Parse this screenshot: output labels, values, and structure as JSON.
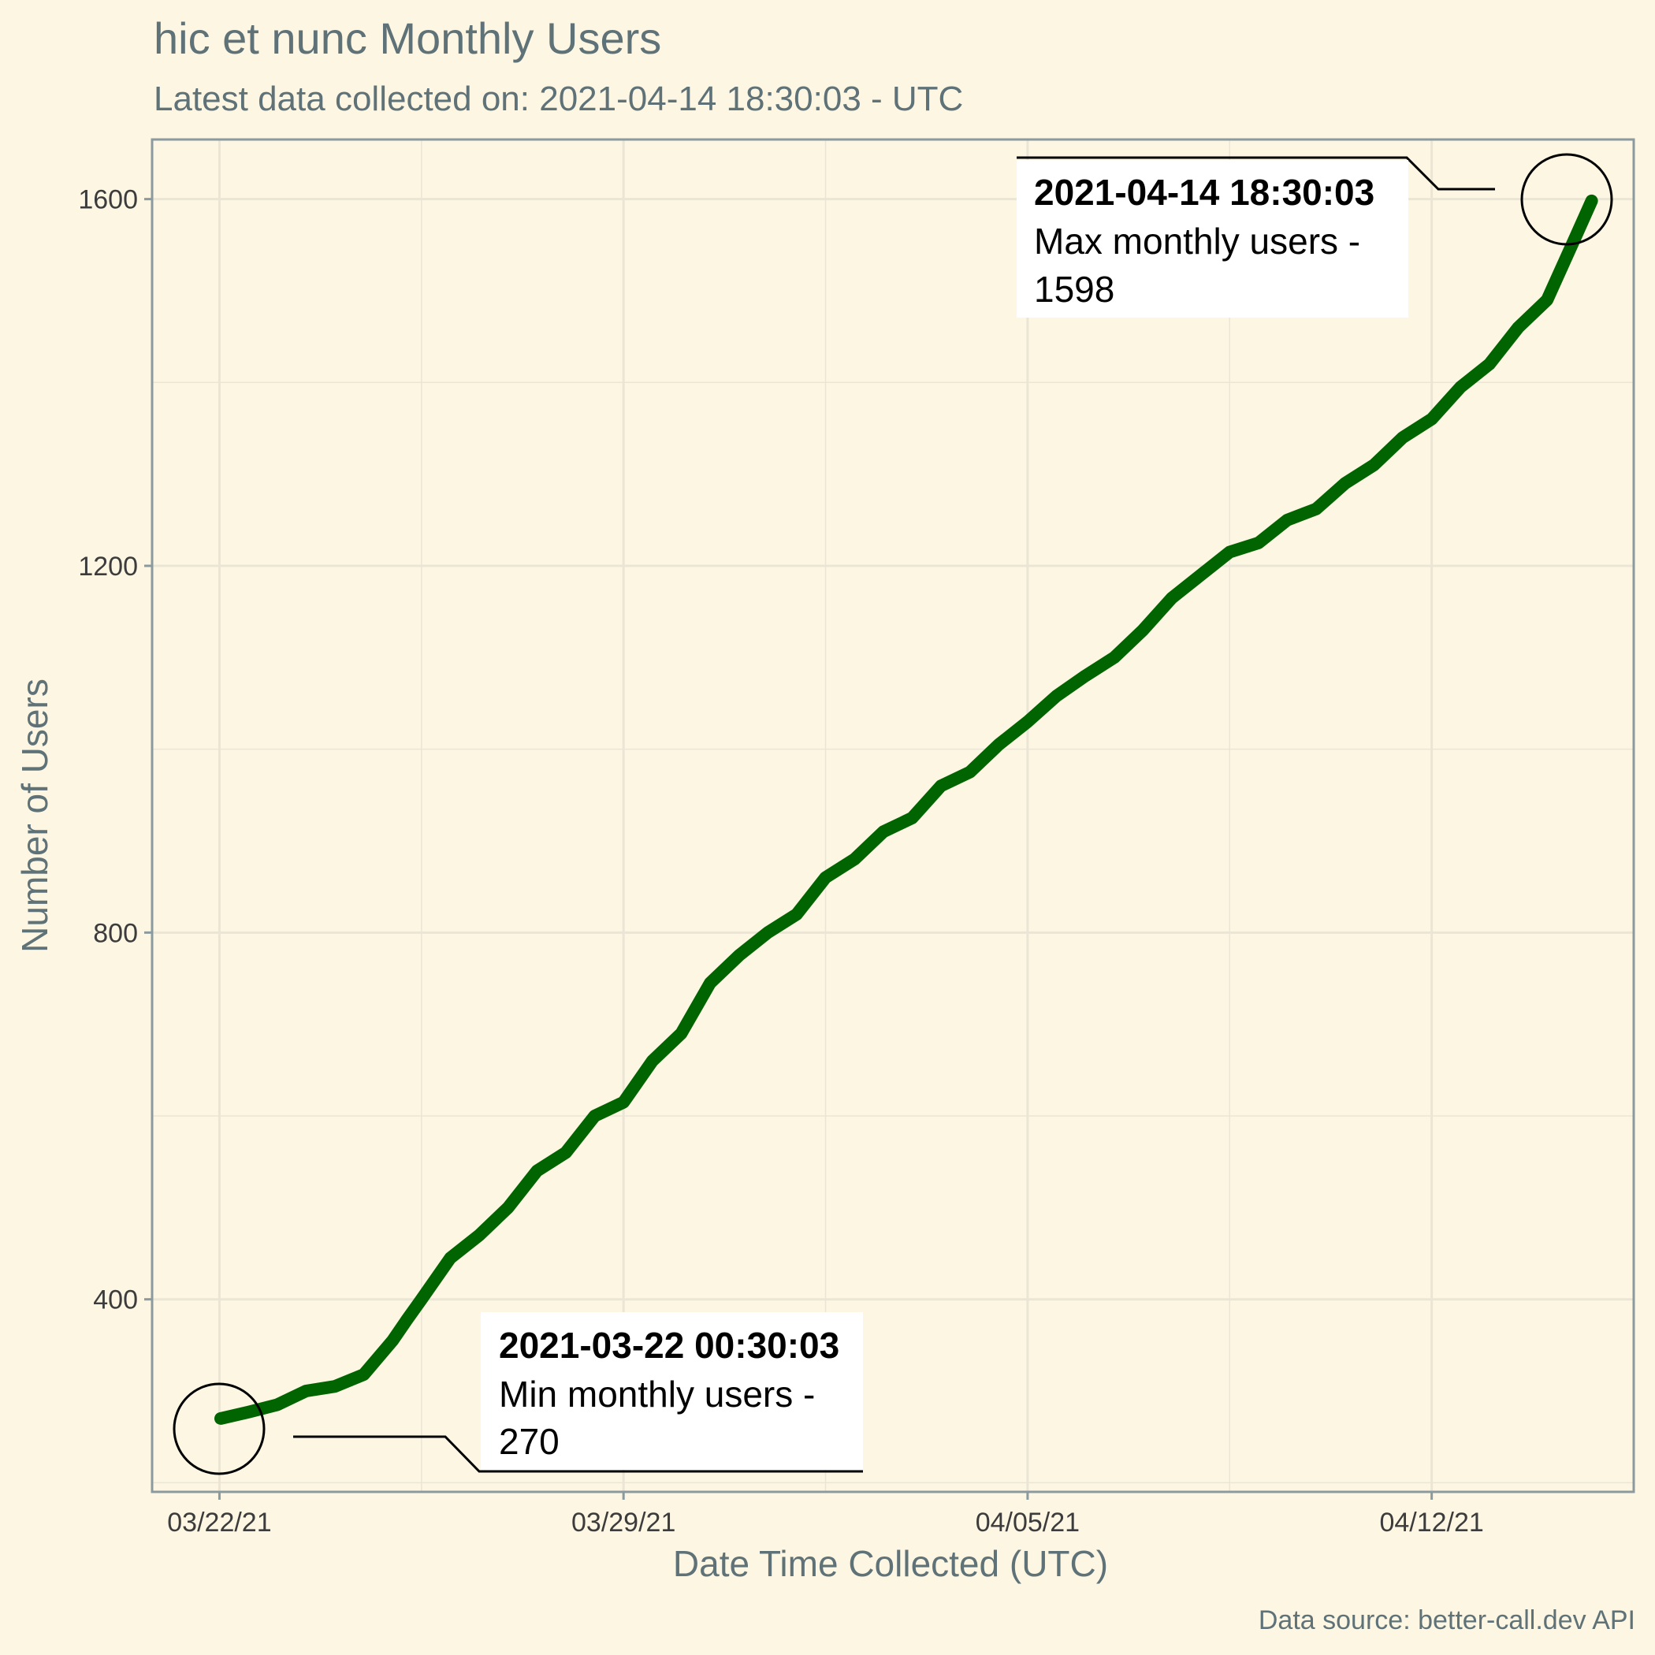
{
  "chart_data": {
    "type": "line",
    "title": "hic et nunc Monthly Users",
    "subtitle": "Latest data collected on: 2021-04-14 18:30:03  - UTC",
    "xlabel": "Date Time Collected (UTC)",
    "ylabel": "Number of Users",
    "caption": "Data source: better-call.dev API",
    "x_ticks": [
      "03/22/21",
      "03/29/21",
      "04/05/21",
      "04/12/21"
    ],
    "y_ticks": [
      400,
      800,
      1200,
      1600
    ],
    "xlim": [
      "2021-03-20T20:00:00",
      "2021-04-15T12:00:00"
    ],
    "ylim": [
      190,
      1665
    ],
    "grid": true,
    "line_color": "#006400",
    "series": [
      {
        "x": [
          "2021-03-22T00:30:03",
          "2021-03-22T12:00",
          "2021-03-23T00:00",
          "2021-03-23T12:00",
          "2021-03-24T00:00",
          "2021-03-24T12:00",
          "2021-03-25T00:00",
          "2021-03-25T06:00",
          "2021-03-25T12:00",
          "2021-03-26T00:00",
          "2021-03-26T12:00",
          "2021-03-27T00:00",
          "2021-03-27T12:00",
          "2021-03-28T00:00",
          "2021-03-28T12:00",
          "2021-03-29T00:00",
          "2021-03-29T12:00",
          "2021-03-30T00:00",
          "2021-03-30T12:00",
          "2021-03-31T00:00",
          "2021-03-31T12:00",
          "2021-04-01T00:00",
          "2021-04-01T12:00",
          "2021-04-02T00:00",
          "2021-04-02T12:00",
          "2021-04-03T00:00",
          "2021-04-03T12:00",
          "2021-04-04T00:00",
          "2021-04-04T12:00",
          "2021-04-05T00:00",
          "2021-04-05T12:00",
          "2021-04-06T00:00",
          "2021-04-06T12:00",
          "2021-04-07T00:00",
          "2021-04-07T12:00",
          "2021-04-08T00:00",
          "2021-04-08T12:00",
          "2021-04-09T00:00",
          "2021-04-09T12:00",
          "2021-04-10T00:00",
          "2021-04-10T12:00",
          "2021-04-11T00:00",
          "2021-04-11T12:00",
          "2021-04-12T00:00",
          "2021-04-12T12:00",
          "2021-04-13T00:00",
          "2021-04-13T12:00",
          "2021-04-14T00:00",
          "2021-04-14T12:00",
          "2021-04-14T18:30:03"
        ],
        "y": [
          270,
          277,
          285,
          300,
          305,
          318,
          355,
          378,
          400,
          445,
          470,
          500,
          540,
          560,
          600,
          615,
          660,
          690,
          745,
          775,
          800,
          820,
          860,
          880,
          910,
          925,
          960,
          975,
          1005,
          1030,
          1058,
          1080,
          1100,
          1130,
          1165,
          1190,
          1215,
          1225,
          1250,
          1262,
          1290,
          1310,
          1340,
          1360,
          1395,
          1420,
          1460,
          1490,
          1560,
          1598
        ]
      }
    ],
    "annotations": [
      {
        "label": "2021-03-22 00:30:03",
        "text_line1": "Min monthly users -",
        "text_line2": "270"
      },
      {
        "label": "2021-04-14 18:30:03",
        "text_line1": "Max monthly users -",
        "text_line2": "1598"
      }
    ]
  }
}
